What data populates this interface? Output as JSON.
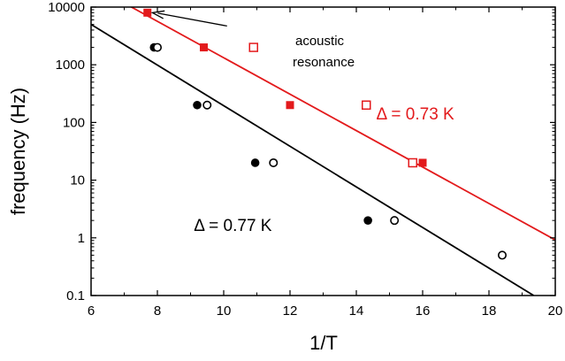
{
  "chart_data": {
    "type": "scatter",
    "xlabel": "1/T",
    "ylabel": "frequency (Hz)",
    "xlim": [
      6,
      20
    ],
    "ylim": [
      0.1,
      10000
    ],
    "yscale": "log",
    "x_ticks": [
      "6",
      "8",
      "10",
      "12",
      "14",
      "16",
      "18",
      "20"
    ],
    "y_ticks": [
      "0.1",
      "1",
      "10",
      "100",
      "1000",
      "10000"
    ],
    "grid": false,
    "series": [
      {
        "marker": "filled-square",
        "color": "#e31a1c",
        "points": [
          [
            7.7,
            8000
          ],
          [
            9.4,
            2000
          ],
          [
            12.0,
            200
          ],
          [
            16.0,
            20
          ]
        ]
      },
      {
        "marker": "open-square",
        "color": "#e31a1c",
        "points": [
          [
            10.9,
            2000
          ],
          [
            14.3,
            200
          ],
          [
            15.7,
            20
          ]
        ]
      },
      {
        "marker": "filled-circle",
        "color": "#000000",
        "points": [
          [
            7.9,
            2000
          ],
          [
            9.2,
            200
          ],
          [
            10.95,
            20
          ],
          [
            14.35,
            2
          ]
        ]
      },
      {
        "marker": "open-circle",
        "color": "#000000",
        "points": [
          [
            8.0,
            2000
          ],
          [
            9.5,
            200
          ],
          [
            11.5,
            20
          ],
          [
            15.15,
            2
          ],
          [
            18.4,
            0.5
          ]
        ]
      }
    ],
    "fit_lines": [
      {
        "color": "#e31a1c",
        "points": [
          [
            6.66,
            15000
          ],
          [
            20,
            0.92
          ]
        ]
      },
      {
        "color": "#000000",
        "points": [
          [
            6,
            5000
          ],
          [
            19.35,
            0.1
          ]
        ]
      }
    ],
    "annotations": {
      "arrow_label_line1": "acoustic",
      "arrow_label_line2": "resonance",
      "arrow_from": [
        10.1,
        4700
      ],
      "arrow_to": [
        7.85,
        8000
      ],
      "red_fit_label": "Δ = 0.73 K",
      "red_fit_label_at": [
        14.6,
        145
      ],
      "black_fit_label": "Δ = 0.77 K",
      "black_fit_label_at": [
        9.1,
        1.7
      ]
    }
  }
}
